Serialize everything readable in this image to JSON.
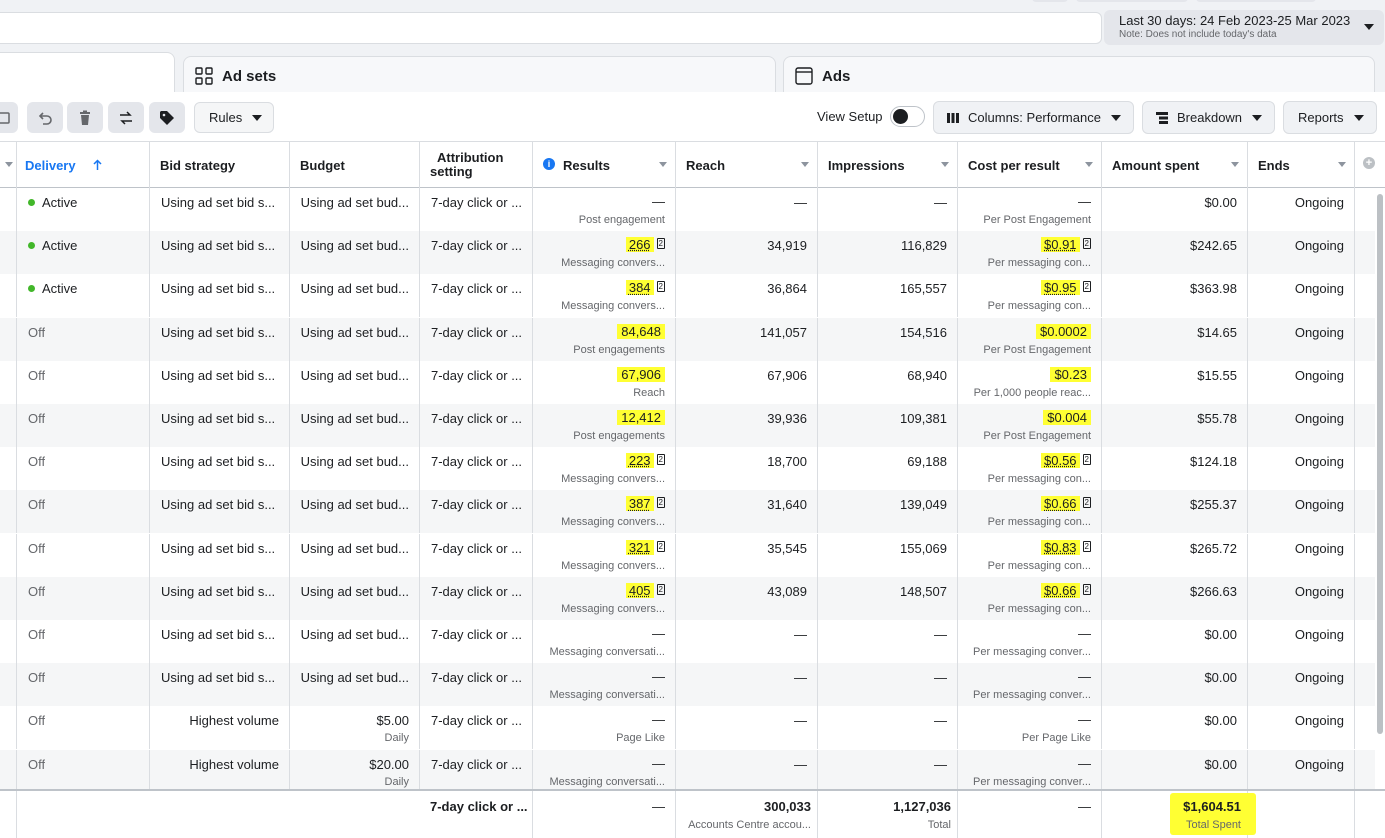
{
  "date_range": {
    "label": "Last 30 days: 24 Feb 2023-25 Mar 2023",
    "note": "Note: Does not include today's data"
  },
  "tabs": [
    {
      "label": "",
      "icon": "campaigns-icon"
    },
    {
      "label": "Ad sets",
      "icon": "ad-sets-icon"
    },
    {
      "label": "Ads",
      "icon": "ads-icon"
    }
  ],
  "toolbar": {
    "rules_label": "Rules",
    "view_setup_label": "View Setup",
    "columns_label": "Columns: Performance",
    "breakdown_label": "Breakdown",
    "reports_label": "Reports"
  },
  "columns": {
    "delivery": "Delivery",
    "bid_strategy": "Bid strategy",
    "budget": "Budget",
    "attribution_1": "Attribution",
    "attribution_2": "setting",
    "results": "Results",
    "reach": "Reach",
    "impressions": "Impressions",
    "cost_per_result": "Cost per result",
    "amount_spent": "Amount spent",
    "ends": "Ends"
  },
  "rows": [
    {
      "delivery": "Active",
      "active": true,
      "bid": "Using ad set bid s...",
      "budget": "Using ad set bud...",
      "budget_sub": "",
      "attr": "7-day click or ...",
      "results": "—",
      "results_sub": "Post engagement",
      "results_hl": false,
      "results_fn": false,
      "reach": "—",
      "impressions": "—",
      "cpr": "—",
      "cpr_sub": "Per Post Engagement",
      "cpr_hl": false,
      "cpr_fn": false,
      "spent": "$0.00",
      "ends": "Ongoing"
    },
    {
      "delivery": "Active",
      "active": true,
      "bid": "Using ad set bid s...",
      "budget": "Using ad set bud...",
      "budget_sub": "",
      "attr": "7-day click or ...",
      "results": "266",
      "results_sub": "Messaging convers...",
      "results_hl": true,
      "results_fn": true,
      "reach": "34,919",
      "impressions": "116,829",
      "cpr": "$0.91",
      "cpr_sub": "Per messaging con...",
      "cpr_hl": true,
      "cpr_fn": true,
      "spent": "$242.65",
      "ends": "Ongoing"
    },
    {
      "delivery": "Active",
      "active": true,
      "bid": "Using ad set bid s...",
      "budget": "Using ad set bud...",
      "budget_sub": "",
      "attr": "7-day click or ...",
      "results": "384",
      "results_sub": "Messaging convers...",
      "results_hl": true,
      "results_fn": true,
      "reach": "36,864",
      "impressions": "165,557",
      "cpr": "$0.95",
      "cpr_sub": "Per messaging con...",
      "cpr_hl": true,
      "cpr_fn": true,
      "spent": "$363.98",
      "ends": "Ongoing"
    },
    {
      "delivery": "Off",
      "active": false,
      "bid": "Using ad set bid s...",
      "budget": "Using ad set bud...",
      "budget_sub": "",
      "attr": "7-day click or ...",
      "results": "84,648",
      "results_sub": "Post engagements",
      "results_hl": true,
      "results_fn": false,
      "reach": "141,057",
      "impressions": "154,516",
      "cpr": "$0.0002",
      "cpr_sub": "Per Post Engagement",
      "cpr_hl": true,
      "cpr_fn": false,
      "spent": "$14.65",
      "ends": "Ongoing"
    },
    {
      "delivery": "Off",
      "active": false,
      "bid": "Using ad set bid s...",
      "budget": "Using ad set bud...",
      "budget_sub": "",
      "attr": "7-day click or ...",
      "results": "67,906",
      "results_sub": "Reach",
      "results_hl": true,
      "results_fn": false,
      "reach": "67,906",
      "impressions": "68,940",
      "cpr": "$0.23",
      "cpr_sub": "Per 1,000 people reac...",
      "cpr_hl": true,
      "cpr_fn": false,
      "spent": "$15.55",
      "ends": "Ongoing"
    },
    {
      "delivery": "Off",
      "active": false,
      "bid": "Using ad set bid s...",
      "budget": "Using ad set bud...",
      "budget_sub": "",
      "attr": "7-day click or ...",
      "results": "12,412",
      "results_sub": "Post engagements",
      "results_hl": true,
      "results_fn": false,
      "reach": "39,936",
      "impressions": "109,381",
      "cpr": "$0.004",
      "cpr_sub": "Per Post Engagement",
      "cpr_hl": true,
      "cpr_fn": false,
      "spent": "$55.78",
      "ends": "Ongoing"
    },
    {
      "delivery": "Off",
      "active": false,
      "bid": "Using ad set bid s...",
      "budget": "Using ad set bud...",
      "budget_sub": "",
      "attr": "7-day click or ...",
      "results": "223",
      "results_sub": "Messaging convers...",
      "results_hl": true,
      "results_fn": true,
      "reach": "18,700",
      "impressions": "69,188",
      "cpr": "$0.56",
      "cpr_sub": "Per messaging con...",
      "cpr_hl": true,
      "cpr_fn": true,
      "spent": "$124.18",
      "ends": "Ongoing"
    },
    {
      "delivery": "Off",
      "active": false,
      "bid": "Using ad set bid s...",
      "budget": "Using ad set bud...",
      "budget_sub": "",
      "attr": "7-day click or ...",
      "results": "387",
      "results_sub": "Messaging convers...",
      "results_hl": true,
      "results_fn": true,
      "reach": "31,640",
      "impressions": "139,049",
      "cpr": "$0.66",
      "cpr_sub": "Per messaging con...",
      "cpr_hl": true,
      "cpr_fn": true,
      "spent": "$255.37",
      "ends": "Ongoing"
    },
    {
      "delivery": "Off",
      "active": false,
      "bid": "Using ad set bid s...",
      "budget": "Using ad set bud...",
      "budget_sub": "",
      "attr": "7-day click or ...",
      "results": "321",
      "results_sub": "Messaging convers...",
      "results_hl": true,
      "results_fn": true,
      "reach": "35,545",
      "impressions": "155,069",
      "cpr": "$0.83",
      "cpr_sub": "Per messaging con...",
      "cpr_hl": true,
      "cpr_fn": true,
      "spent": "$265.72",
      "ends": "Ongoing"
    },
    {
      "delivery": "Off",
      "active": false,
      "bid": "Using ad set bid s...",
      "budget": "Using ad set bud...",
      "budget_sub": "",
      "attr": "7-day click or ...",
      "results": "405",
      "results_sub": "Messaging convers...",
      "results_hl": true,
      "results_fn": true,
      "reach": "43,089",
      "impressions": "148,507",
      "cpr": "$0.66",
      "cpr_sub": "Per messaging con...",
      "cpr_hl": true,
      "cpr_fn": true,
      "spent": "$266.63",
      "ends": "Ongoing"
    },
    {
      "delivery": "Off",
      "active": false,
      "bid": "Using ad set bid s...",
      "budget": "Using ad set bud...",
      "budget_sub": "",
      "attr": "7-day click or ...",
      "results": "—",
      "results_sub": "Messaging conversati...",
      "results_hl": false,
      "results_fn": false,
      "reach": "—",
      "impressions": "—",
      "cpr": "—",
      "cpr_sub": "Per messaging conver...",
      "cpr_hl": false,
      "cpr_fn": false,
      "spent": "$0.00",
      "ends": "Ongoing"
    },
    {
      "delivery": "Off",
      "active": false,
      "bid": "Using ad set bid s...",
      "budget": "Using ad set bud...",
      "budget_sub": "",
      "attr": "7-day click or ...",
      "results": "—",
      "results_sub": "Messaging conversati...",
      "results_hl": false,
      "results_fn": false,
      "reach": "—",
      "impressions": "—",
      "cpr": "—",
      "cpr_sub": "Per messaging conver...",
      "cpr_hl": false,
      "cpr_fn": false,
      "spent": "$0.00",
      "ends": "Ongoing"
    },
    {
      "delivery": "Off",
      "active": false,
      "bid": "Highest volume",
      "budget": "$5.00",
      "budget_sub": "Daily",
      "attr": "7-day click or ...",
      "results": "—",
      "results_sub": "Page Like",
      "results_hl": false,
      "results_fn": false,
      "reach": "—",
      "impressions": "—",
      "cpr": "—",
      "cpr_sub": "Per Page Like",
      "cpr_hl": false,
      "cpr_fn": false,
      "spent": "$0.00",
      "ends": "Ongoing"
    },
    {
      "delivery": "Off",
      "active": false,
      "bid": "Highest volume",
      "budget": "$20.00",
      "budget_sub": "Daily",
      "attr": "7-day click or ...",
      "results": "—",
      "results_sub": "Messaging conversati...",
      "results_hl": false,
      "results_fn": false,
      "reach": "—",
      "impressions": "—",
      "cpr": "—",
      "cpr_sub": "Per messaging conver...",
      "cpr_hl": false,
      "cpr_fn": false,
      "spent": "$0.00",
      "ends": "Ongoing"
    }
  ],
  "footnote_marker": "2",
  "footer": {
    "attr": "7-day click or ...",
    "results": "—",
    "reach": "300,033",
    "reach_sub": "Accounts Centre accou...",
    "impressions": "1,127,036",
    "impressions_sub": "Total",
    "cpr": "—",
    "spent": "$1,604.51",
    "spent_sub": "Total Spent"
  },
  "colors": {
    "accent": "#1877f2",
    "highlight": "#ffff33",
    "active_dot": "#42b72a"
  }
}
